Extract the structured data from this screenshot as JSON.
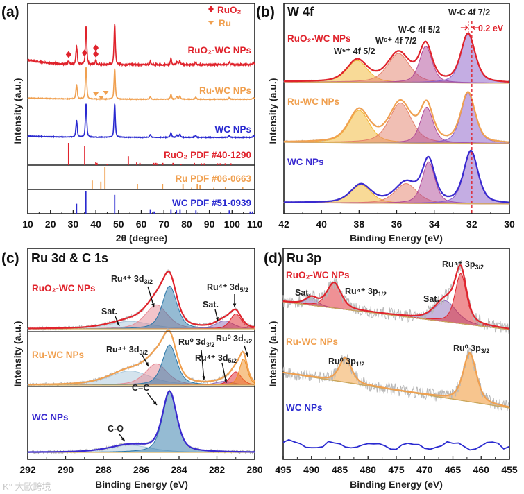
{
  "chart_data": [
    {
      "panel": "(a)",
      "type": "line",
      "title": "",
      "xlabel": "2θ (degree)",
      "ylabel": "Intensity (a.u.)",
      "xlim": [
        10,
        110
      ],
      "xticks": [
        10,
        20,
        30,
        40,
        50,
        60,
        70,
        80,
        90,
        100,
        110
      ],
      "legend": [
        {
          "symbol": "diamond",
          "label": "RuO₂",
          "color": "#e0232c"
        },
        {
          "symbol": "triangle",
          "label": "Ru",
          "color": "#f0a050"
        }
      ],
      "series": [
        {
          "name": "RuO₂-WC NPs",
          "color": "#e0232c",
          "peaks": [
            [
              28.0,
              0.08
            ],
            [
              31.5,
              0.45
            ],
            [
              35.7,
              0.95
            ],
            [
              40.0,
              0.1
            ],
            [
              48.3,
              1.0
            ],
            [
              64.0,
              0.08
            ],
            [
              73.1,
              0.14
            ],
            [
              75.7,
              0.07
            ],
            [
              77.0,
              0.09
            ],
            [
              84.0,
              0.06
            ],
            [
              98.8,
              0.06
            ],
            [
              109.5,
              0.05
            ]
          ]
        },
        {
          "name": "Ru-WC NPs",
          "color": "#f0a050",
          "peaks": [
            [
              31.5,
              0.45
            ],
            [
              35.7,
              1.0
            ],
            [
              48.3,
              0.95
            ],
            [
              64.0,
              0.08
            ],
            [
              73.1,
              0.14
            ],
            [
              75.7,
              0.08
            ],
            [
              77.0,
              0.1
            ],
            [
              84.0,
              0.06
            ],
            [
              98.8,
              0.05
            ],
            [
              109.5,
              0.05
            ]
          ]
        },
        {
          "name": "WC NPs",
          "color": "#2a2ad0",
          "peaks": [
            [
              31.5,
              0.5
            ],
            [
              35.7,
              1.0
            ],
            [
              48.3,
              1.0
            ],
            [
              64.0,
              0.08
            ],
            [
              73.1,
              0.14
            ],
            [
              75.7,
              0.07
            ],
            [
              77.0,
              0.1
            ],
            [
              84.0,
              0.06
            ],
            [
              98.8,
              0.05
            ],
            [
              109.5,
              0.05
            ]
          ]
        }
      ],
      "markers": [
        {
          "symbol": "diamond",
          "series": 0,
          "x": [
            28.0,
            35.0,
            40.0
          ],
          "color": "#e0232c"
        },
        {
          "symbol": "triangle",
          "series": 1,
          "x": [
            40.0,
            42.4,
            44.4
          ],
          "color": "#f0a050"
        }
      ],
      "references": [
        {
          "name": "RuO₂ PDF #40-1290",
          "color": "#e0232c",
          "sticks": [
            [
              28.0,
              1.0
            ],
            [
              35.1,
              0.85
            ],
            [
              40.0,
              0.15
            ],
            [
              40.5,
              0.1
            ],
            [
              45.0,
              0.05
            ],
            [
              54.3,
              0.4
            ],
            [
              58.0,
              0.12
            ],
            [
              59.4,
              0.1
            ],
            [
              65.5,
              0.1
            ],
            [
              66.5,
              0.1
            ],
            [
              67.2,
              0.08
            ],
            [
              69.5,
              0.1
            ],
            [
              74.0,
              0.1
            ],
            [
              77.5,
              0.05
            ],
            [
              83.4,
              0.1
            ],
            [
              86.5,
              0.08
            ],
            [
              87.8,
              0.08
            ],
            [
              93.6,
              0.08
            ],
            [
              94.8,
              0.08
            ],
            [
              97.0,
              0.08
            ],
            [
              99.5,
              0.08
            ]
          ]
        },
        {
          "name": "Ru PDF #06-0663",
          "color": "#f0a050",
          "sticks": [
            [
              38.4,
              0.4
            ],
            [
              42.2,
              0.35
            ],
            [
              44.0,
              1.0
            ],
            [
              58.3,
              0.25
            ],
            [
              69.4,
              0.25
            ],
            [
              78.4,
              0.25
            ],
            [
              82.2,
              0.08
            ],
            [
              84.7,
              0.25
            ],
            [
              85.9,
              0.2
            ],
            [
              92.0,
              0.08
            ],
            [
              97.1,
              0.1
            ],
            [
              104.7,
              0.1
            ]
          ]
        },
        {
          "name": "WC PDF #51-0939",
          "color": "#2a2ad0",
          "sticks": [
            [
              31.5,
              0.45
            ],
            [
              35.6,
              1.0
            ],
            [
              48.3,
              0.85
            ],
            [
              64.0,
              0.2
            ],
            [
              65.7,
              0.1
            ],
            [
              73.1,
              0.2
            ],
            [
              75.5,
              0.15
            ],
            [
              77.1,
              0.2
            ],
            [
              84.1,
              0.15
            ],
            [
              98.8,
              0.15
            ],
            [
              108.0,
              0.1
            ],
            [
              109.0,
              0.1
            ]
          ]
        }
      ]
    },
    {
      "panel": "(b)",
      "type": "line",
      "title": "W 4f",
      "xlabel": "Binding Energy (eV)",
      "ylabel": "Intensity (a.u.)",
      "xlim": [
        42,
        30
      ],
      "xticks": [
        42,
        40,
        38,
        36,
        34,
        32,
        30
      ],
      "components": [
        {
          "label": "W⁶⁺ 4f 5/2",
          "center": 38.0,
          "width": 1.3,
          "color": "#f2b630"
        },
        {
          "label": "W⁶⁺ 4f 7/2",
          "center": 35.9,
          "width": 1.4,
          "color": "#e4806a"
        },
        {
          "label": "W-C 4f 5/2",
          "center": 34.4,
          "width": 0.8,
          "color": "#b04a98"
        },
        {
          "label": "W-C 4f 7/2",
          "center": 32.2,
          "width": 0.9,
          "color": "#8a5cc8"
        }
      ],
      "series": [
        {
          "name": "RuO₂-WC NPs",
          "color": "#e0232c",
          "heights": [
            0.45,
            0.6,
            0.75,
            1.0
          ],
          "centers": [
            38.1,
            35.9,
            34.45,
            32.2
          ]
        },
        {
          "name": "Ru-WC NPs",
          "color": "#f0a050",
          "heights": [
            0.65,
            0.8,
            0.72,
            1.0
          ],
          "centers": [
            38.0,
            35.8,
            34.4,
            32.2
          ]
        },
        {
          "name": "WC NPs",
          "color": "#3a2ad0",
          "heights": [
            0.35,
            0.38,
            0.8,
            1.0
          ],
          "centers": [
            37.9,
            35.5,
            34.3,
            32.05
          ]
        }
      ],
      "shift_annotation": {
        "text": "0.2 eV",
        "x": 32.0,
        "color": "#e0232c"
      }
    },
    {
      "panel": "(c)",
      "type": "line",
      "title": "Ru 3d & C 1s",
      "xlabel": "Binding Energy (eV)",
      "ylabel": "Intensity (a.u.)",
      "xlim": [
        292,
        280
      ],
      "xticks": [
        292,
        290,
        288,
        286,
        284,
        282,
        280
      ],
      "components": [
        {
          "label": "C-O",
          "center": 286.6,
          "width": 2.6,
          "color": "#a9c8dc"
        },
        {
          "label": "Ru⁴⁺ 3d3/2",
          "center": 285.2,
          "width": 1.4,
          "color": "#e58a95"
        },
        {
          "label": "C=C",
          "center": 284.5,
          "width": 0.9,
          "color": "#2b77a8"
        },
        {
          "label": "Sat.",
          "center": 281.6,
          "width": 1.1,
          "color": "#8e6cb8"
        },
        {
          "label": "Ru⁴⁺ 3d5/2",
          "center": 281.0,
          "width": 0.7,
          "color": "#e0232c"
        },
        {
          "label": "Ru⁰ 3d5/2",
          "center": 280.6,
          "width": 0.5,
          "color": "#f08c1e"
        }
      ],
      "series": [
        {
          "name": "RuO₂-WC NPs",
          "color": "#e0232c",
          "heights": [
            0.14,
            0.45,
            0.8,
            0.15,
            0.28,
            0
          ]
        },
        {
          "name": "Ru-WC NPs",
          "color": "#f0a050",
          "heights": [
            0.3,
            0.45,
            0.85,
            0.08,
            0.28,
            0.55
          ]
        },
        {
          "name": "WC NPs",
          "color": "#3a2ad0",
          "heights": [
            0.12,
            0,
            1.0,
            0,
            0,
            0
          ]
        }
      ]
    },
    {
      "panel": "(d)",
      "type": "line",
      "title": "Ru 3p",
      "xlabel": "Binding Energy (eV)",
      "ylabel": "Intensity (a.u.)",
      "xlim": [
        495,
        455
      ],
      "xticks": [
        495,
        490,
        485,
        480,
        475,
        470,
        465,
        460,
        455
      ],
      "components": [
        {
          "label": "Sat.",
          "center": 490.0,
          "width": 2.5,
          "color": "#8e6cb8"
        },
        {
          "label": "Ru⁴⁺ 3p1/2",
          "center": 486.0,
          "width": 3.0,
          "color": "#e0232c"
        },
        {
          "label": "Sat.",
          "center": 466.3,
          "width": 4.5,
          "color": "#8e6cb8"
        },
        {
          "label": "Ru⁴⁺ 3p3/2",
          "center": 463.6,
          "width": 2.4,
          "color": "#e0232c"
        },
        {
          "label": "Ru⁰ 3p1/2",
          "center": 484.0,
          "width": 2.6,
          "color": "#f2a040"
        },
        {
          "label": "Ru⁰ 3p3/2",
          "center": 462.0,
          "width": 2.8,
          "color": "#f08c1e"
        }
      ],
      "series": [
        {
          "name": "RuO₂-WC NPs",
          "color": "#e0232c",
          "heights": [
            0.15,
            0.5,
            0.42,
            1.0,
            0,
            0
          ]
        },
        {
          "name": "Ru-WC NPs",
          "color": "#f0a050",
          "heights": [
            0,
            0,
            0,
            0,
            0.5,
            1.0
          ]
        },
        {
          "name": "WC NPs",
          "color": "#2a2ad0",
          "heights": [
            0,
            0,
            0,
            0,
            0,
            0
          ]
        }
      ]
    }
  ],
  "annotations": {
    "b": {
      "w6_52": "W⁶⁺ 4f 5/2",
      "w6_72": "W⁶⁺ 4f 7/2",
      "wc_52": "W-C 4f 5/2",
      "wc_72": "W-C 4f 7/2",
      "shift": "0.2 eV"
    },
    "c": {
      "ru4_32_top": {
        "main": "Ru⁴⁺ 3d",
        "sub": "3/2"
      },
      "sat_left": "Sat.",
      "sat_right": "Sat.",
      "ru4_52_top": {
        "main": "Ru⁴⁺ 3d",
        "sub": "5/2"
      },
      "ru4_32_mid": {
        "main": "Ru⁴⁺ 3d",
        "sub": "3/2"
      },
      "ru0_32": {
        "main": "Ru⁰ 3d",
        "sub": "3/2"
      },
      "ru0_52": {
        "main": "Ru⁰ 3d",
        "sub": "5/2"
      },
      "ru4_52_mid": {
        "main": "Ru⁴⁺ 3d",
        "sub": "5/2"
      },
      "cc": "C=C",
      "co": "C-O"
    },
    "d": {
      "sat_left": "Sat.",
      "ru4_12": {
        "main": "Ru⁴⁺ 3p",
        "sub": "1/2"
      },
      "sat_right": "Sat.",
      "ru4_32": {
        "main": "Ru⁴⁺ 3p",
        "sub": "3/2"
      },
      "ru0_12": {
        "main": "Ru⁰ 3p",
        "sub": "1/2"
      },
      "ru0_32": {
        "main": "Ru⁰ 3p",
        "sub": "3/2"
      }
    }
  },
  "watermark": "K° 大歐跨境",
  "colors": {
    "red": "#e0232c",
    "orange": "#f0a050",
    "blue": "#2a2ad0",
    "axis": "#222222"
  }
}
